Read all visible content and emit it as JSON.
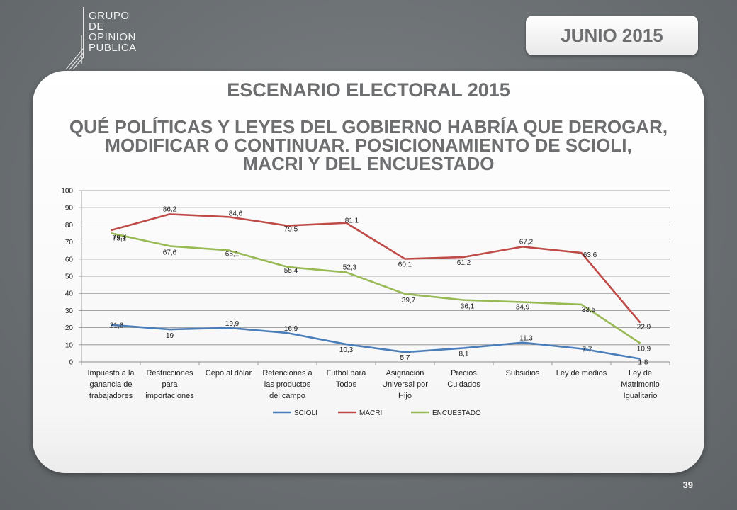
{
  "brand": {
    "logo_lines": [
      "GRUPO",
      "DE",
      "OPINION",
      "PUBLICA"
    ]
  },
  "header": {
    "month_label": "JUNIO 2015"
  },
  "main": {
    "title": "ESCENARIO ELECTORAL 2015",
    "subtitle_lines": [
      "QUÉ POLÍTICAS Y LEYES DEL GOBIERNO HABRÍA QUE DEROGAR,",
      "MODIFICAR  O CONTINUAR. POSICIONAMIENTO DE SCIOLI,",
      "MACRI Y DEL ENCUESTADO"
    ]
  },
  "footer": {
    "page_number": "39"
  },
  "chart_data": {
    "type": "line",
    "categories": [
      [
        "Impuesto a la",
        "ganancia de",
        "trabajadores"
      ],
      [
        "Restricciones",
        "para",
        "importaciones"
      ],
      [
        "Cepo al dólar"
      ],
      [
        "Retenciones a",
        "las productos",
        "del campo"
      ],
      [
        "Futbol para",
        "Todos"
      ],
      [
        "Asignacion",
        "Universal por",
        "Hijo"
      ],
      [
        "Precios",
        "Cuidados"
      ],
      [
        "Subsidios"
      ],
      [
        "Ley de medios"
      ],
      [
        "Ley de",
        "Matrimonio",
        "Igualitario"
      ]
    ],
    "ylim": [
      0,
      100
    ],
    "yticks": [
      "0",
      "10",
      "20",
      "30",
      "40",
      "50",
      "60",
      "70",
      "80",
      "90",
      "100"
    ],
    "grid": true,
    "legend_position": "bottom",
    "series": [
      {
        "name": "SCIOLI",
        "color": "#4a7ebb",
        "values": [
          21.6,
          19,
          19.9,
          16.9,
          10.3,
          5.7,
          8.1,
          11.3,
          7.7,
          1.8
        ],
        "labels": [
          "21,6",
          "19",
          "19,9",
          "16,9",
          "10,3",
          "5,7",
          "8,1",
          "11,3",
          "7,7",
          "1,8"
        ]
      },
      {
        "name": "MACRI",
        "color": "#be4b48",
        "values": [
          76.8,
          86.2,
          84.6,
          79.5,
          81.1,
          60.1,
          61.2,
          67.2,
          63.6,
          22.9
        ],
        "labels": [
          "76,8",
          "86,2",
          "84,6",
          "79,5",
          "81,1",
          "60,1",
          "61,2",
          "67,2",
          "63,6",
          "22,9"
        ]
      },
      {
        "name": "ENCUESTADO",
        "color": "#98b954",
        "values": [
          75.1,
          67.6,
          65.1,
          55.4,
          52.3,
          39.7,
          36.1,
          34.9,
          33.5,
          10.9
        ],
        "labels": [
          "75,1",
          "67,6",
          "65,1",
          "55,4",
          "52,3",
          "39,7",
          "36,1",
          "34,9",
          "33,5",
          "10,9"
        ]
      }
    ]
  }
}
